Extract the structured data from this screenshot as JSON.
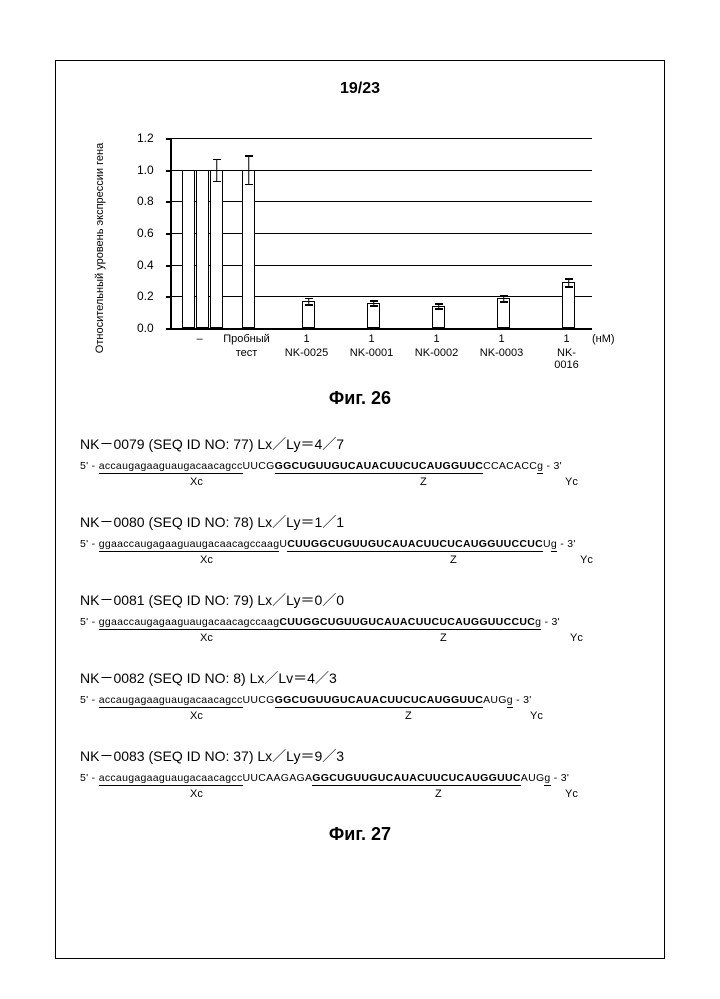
{
  "page_number": "19/23",
  "chart": {
    "type": "bar",
    "ylabel": "Относительный уровень экспрессии гена",
    "ylim": [
      0,
      1.2
    ],
    "yticks": [
      0.0,
      0.2,
      0.4,
      0.6,
      0.8,
      1.0,
      1.2
    ],
    "background_color": "#ffffff",
    "grid_color": "#000000",
    "bar_border_color": "#000000",
    "bar_fill_color": "#ffffff",
    "unit_label": "(нМ)",
    "groups": [
      {
        "top_label": "–",
        "sub_label": "",
        "bars": [
          1.0,
          1.0,
          1.0
        ],
        "err": 0.07
      },
      {
        "top_label": "Пробный",
        "sub_label": "тест",
        "bars": [
          1.0
        ],
        "err": 0.09
      },
      {
        "top_label": "1",
        "sub_label": "NK-0025",
        "bars": [
          0.17
        ],
        "err": 0.02
      },
      {
        "top_label": "1",
        "sub_label": "NK-0001",
        "bars": [
          0.16
        ],
        "err": 0.015
      },
      {
        "top_label": "1",
        "sub_label": "NK-0002",
        "bars": [
          0.14
        ],
        "err": 0.015
      },
      {
        "top_label": "1",
        "sub_label": "NK-0003",
        "bars": [
          0.19
        ],
        "err": 0.02
      },
      {
        "top_label": "1",
        "sub_label": "NK-0016",
        "bars": [
          0.29
        ],
        "err": 0.025
      }
    ]
  },
  "fig26_caption": "Фиг. 26",
  "sequences": [
    {
      "title": "NK－0079 (SEQ ID NO: 77) Lx／Ly＝4／7",
      "prefix": "5' -",
      "suffix": "- 3'",
      "xc": "accaugagaaguaugacaacagcc",
      "mid1": "UUCG",
      "z_bold": "GGCUGUUGUCAUACUUCUCAUGGUUC",
      "mid2": "CCACACC",
      "yc": "g",
      "xc_label": "Xc",
      "z_label": "Z",
      "yc_label": "Yc",
      "xc_pos": 110,
      "z_pos": 340,
      "yc_pos": 485
    },
    {
      "title": "NK－0080 (SEQ ID NO: 78) Lx／Ly＝1／1",
      "prefix": "5' -",
      "suffix": "- 3'",
      "xc": "ggaaccaugagaaguaugacaacagccaag",
      "mid1": "U",
      "z_bold": "CUUGGCUGUUGUCAUACUUCUCAUGGUUCCUC",
      "mid2": "U",
      "yc": "g",
      "xc_label": "Xc",
      "z_label": "Z",
      "yc_label": "Yc",
      "xc_pos": 120,
      "z_pos": 370,
      "yc_pos": 500
    },
    {
      "title": "NK－0081 (SEQ ID NO: 79) Lx／Ly＝0／0",
      "prefix": "5' -",
      "suffix": "- 3'",
      "xc": "ggaaccaugagaaguaugacaacagccaag",
      "mid1": "",
      "z_bold": "CUUGGCUGUUGUCAUACUUCUCAUGGUUCCUC",
      "mid2": "",
      "yc": "g",
      "xc_label": "Xc",
      "z_label": "Z",
      "yc_label": "Yc",
      "xc_pos": 120,
      "z_pos": 360,
      "yc_pos": 490
    },
    {
      "title": "NK－0082 (SEQ ID NO: 8) Lx／Lv＝4／3",
      "prefix": "5' -",
      "suffix": "- 3'",
      "xc": "accaugagaaguaugacaacagcc",
      "mid1": "UUCG",
      "z_bold": "GGCUGUUGUCAUACUUCUCAUGGUUC",
      "mid2": "AUG",
      "yc": "g",
      "xc_label": "Xc",
      "z_label": "Z",
      "yc_label": "Yc",
      "xc_pos": 110,
      "z_pos": 325,
      "yc_pos": 450
    },
    {
      "title": "NK－0083 (SEQ ID NO: 37) Lx／Ly＝9／3",
      "prefix": "5' -",
      "suffix": "- 3'",
      "xc": "accaugagaaguaugacaacagcc",
      "mid1": "UUCAAGAGA",
      "z_bold": "GGCUGUUGUCAUACUUCUCAUGGUUC",
      "mid2": "AUG",
      "yc": "g",
      "xc_label": "Xc",
      "z_label": "Z",
      "yc_label": "Yc",
      "xc_pos": 110,
      "z_pos": 355,
      "yc_pos": 485
    }
  ],
  "fig27_caption": "Фиг. 27"
}
